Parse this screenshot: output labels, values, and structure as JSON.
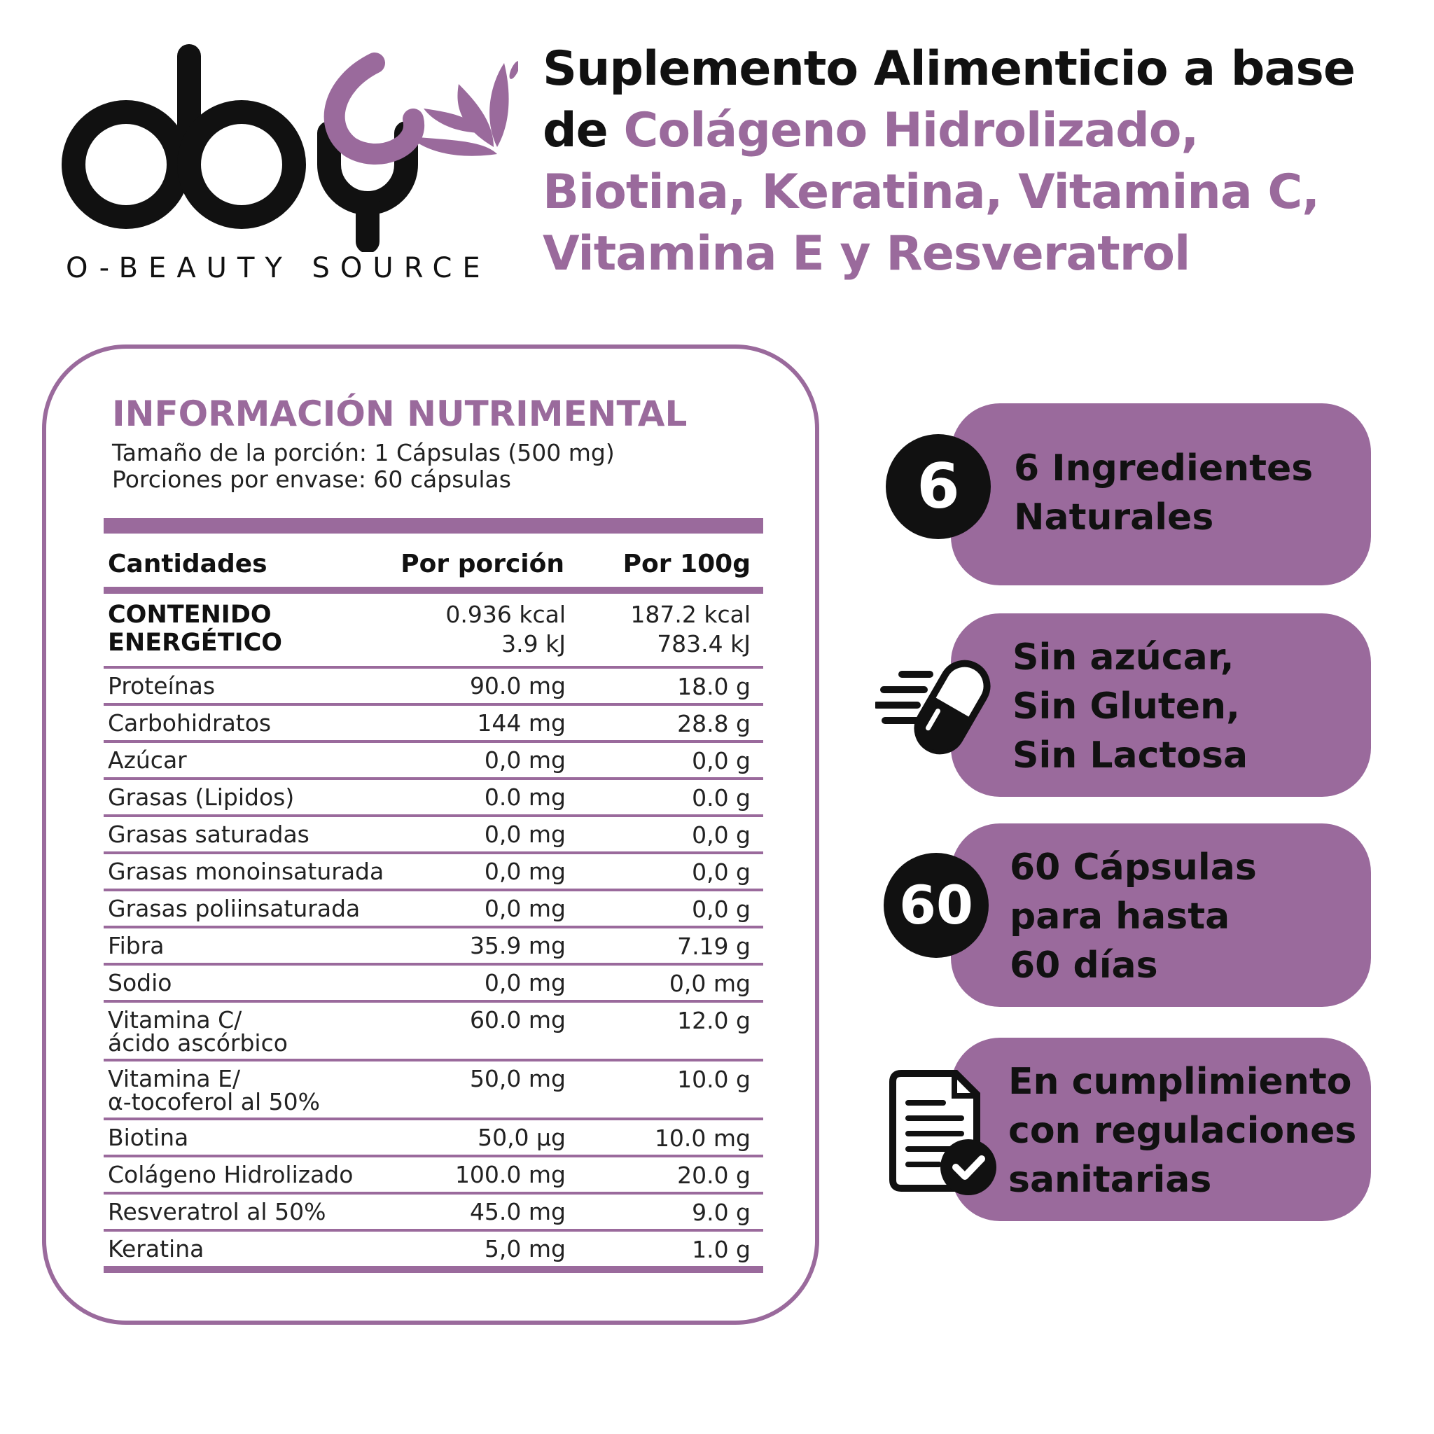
{
  "brand": {
    "logo_text": "oby",
    "tagline": "O-BEAUTY SOURCE"
  },
  "title": {
    "line_dark_1": "Suplemento Alimenticio a base",
    "line_dark_2": "de ",
    "line_accent_2": "Colágeno Hidrolizado,",
    "line_accent_3": "Biotina, Keratina, Vitamina C,",
    "line_accent_4": "Vitamina E y Resveratrol"
  },
  "nutrition": {
    "heading": "INFORMACIÓN NUTRIMENTAL",
    "serving_size": "Tamaño de la porción: 1 Cápsulas (500 mg)",
    "servings_per_container": "Porciones por envase: 60 cápsulas",
    "columns": [
      "Cantidades",
      "Por porción",
      "Por 100g"
    ],
    "energy": {
      "label_1": "CONTENIDO",
      "label_2": "ENERGÉTICO",
      "per_serving_kcal": "0.936 kcal",
      "per_serving_kj": "3.9 kJ",
      "per_100g_kcal": "187.2 kcal",
      "per_100g_kj": "783.4 kJ"
    },
    "rows": [
      {
        "name": "Proteínas",
        "per_serving": "90.0 mg",
        "per_100g": "18.0 g"
      },
      {
        "name": "Carbohidratos",
        "per_serving": "144 mg",
        "per_100g": "28.8 g"
      },
      {
        "name": "Azúcar",
        "per_serving": "0,0 mg",
        "per_100g": "0,0 g"
      },
      {
        "name": "Grasas (Lipidos)",
        "per_serving": "0.0 mg",
        "per_100g": "0.0 g"
      },
      {
        "name": "Grasas saturadas",
        "per_serving": "0,0 mg",
        "per_100g": "0,0 g"
      },
      {
        "name": "Grasas monoinsaturada",
        "per_serving": "0,0 mg",
        "per_100g": "0,0 g"
      },
      {
        "name": "Grasas poliinsaturada",
        "per_serving": "0,0 mg",
        "per_100g": "0,0 g"
      },
      {
        "name": "Fibra",
        "per_serving": "35.9 mg",
        "per_100g": "7.19 g"
      },
      {
        "name": "Sodio",
        "per_serving": "0,0 mg",
        "per_100g": "0,0 mg"
      },
      {
        "name": "Vitamina C/",
        "name_2": "ácido ascórbico",
        "per_serving": "60.0 mg",
        "per_100g": "12.0 g"
      },
      {
        "name": "Vitamina E/",
        "name_2": "α-tocoferol al 50%",
        "per_serving": "50,0 mg",
        "per_100g": "10.0 g"
      },
      {
        "name": "Biotina",
        "per_serving": "50,0 µg",
        "per_100g": "10.0 mg"
      },
      {
        "name": "Colágeno Hidrolizado",
        "per_serving": "100.0 mg",
        "per_100g": "20.0 g"
      },
      {
        "name": "Resveratrol al 50%",
        "per_serving": "45.0 mg",
        "per_100g": "9.0 g"
      },
      {
        "name": "Keratina",
        "per_serving": "5,0 mg",
        "per_100g": "1.0 g"
      }
    ]
  },
  "features": [
    {
      "badge": "6",
      "icon": "number-badge",
      "lines": [
        "6 Ingredientes",
        "Naturales"
      ]
    },
    {
      "icon": "fast-capsule-icon",
      "lines": [
        "Sin azúcar,",
        "Sin Gluten,",
        "Sin Lactosa"
      ]
    },
    {
      "badge": "60",
      "icon": "number-badge",
      "lines": [
        "60 Cápsulas",
        "para hasta",
        "60 días"
      ]
    },
    {
      "icon": "document-check-icon",
      "lines": [
        "En cumplimiento",
        "con regulaciones",
        "sanitarias"
      ]
    }
  ],
  "colors": {
    "accent": "#9a6a9c",
    "dark": "#111111",
    "background": "#ffffff"
  }
}
